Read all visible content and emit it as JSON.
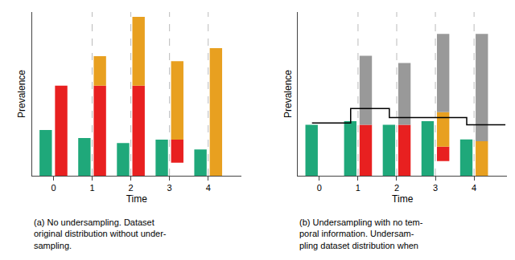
{
  "chart_data": [
    {
      "type": "bar",
      "x": [
        0,
        1,
        2,
        3,
        4
      ],
      "xlabel": "Time",
      "ylabel": "Prevalence",
      "xlim": [
        -0.55,
        4.85
      ],
      "ylim": [
        0,
        1.0
      ],
      "xticks": [
        0,
        1,
        2,
        3,
        4
      ],
      "tick_labels": "x",
      "grid": false,
      "series": [
        {
          "type": "vline",
          "x": [
            1,
            2,
            3,
            4
          ],
          "color": "#bbbbbb",
          "line_style": "dashed"
        },
        {
          "type": "bar",
          "color": "#1fa87a",
          "values": [
            0.28,
            0.23,
            0.2,
            0.22,
            0.16
          ]
        },
        {
          "type": "bar",
          "stacked": true,
          "color": "#e82020",
          "values": [
            0.55,
            0.55,
            0.55,
            0.14,
            0.0
          ],
          "bottom": [
            0.0,
            0.0,
            0.0,
            0.08,
            0.0
          ]
        },
        {
          "type": "bar",
          "stacked": true,
          "color": "#e8a020",
          "values": [
            0.0,
            0.18,
            0.42,
            0.48,
            0.78
          ]
        }
      ],
      "annotations": [
        "(a) No undersampling. Dataset",
        "original distribution without under-",
        "sampling."
      ]
    },
    {
      "type": "bar",
      "x": [
        0,
        1,
        2,
        3,
        4
      ],
      "xlabel": "Time",
      "ylabel": "Prevalence",
      "xlim": [
        -0.55,
        4.85
      ],
      "ylim": [
        0,
        0.9
      ],
      "xticks": [
        0,
        1,
        2,
        3,
        4
      ],
      "tick_labels": "x",
      "grid": false,
      "series": [
        {
          "type": "vline",
          "x": [
            1,
            2,
            3,
            4
          ],
          "color": "#bbbbbb",
          "line_style": "dashed"
        },
        {
          "type": "bar",
          "color": "#1fa87a",
          "values": [
            0.28,
            0.3,
            0.28,
            0.3,
            0.2
          ]
        },
        {
          "type": "bar",
          "stacked": true,
          "color": "#e82020",
          "values": [
            0.0,
            0.28,
            0.28,
            0.08,
            0.0
          ],
          "bottom": [
            0.0,
            0.0,
            0.0,
            0.08,
            0.0
          ]
        },
        {
          "type": "bar",
          "stacked": true,
          "color": "#e8a020",
          "values": [
            0.0,
            0.0,
            0.0,
            0.19,
            0.19
          ]
        },
        {
          "type": "bar",
          "stacked": true,
          "color": "#999999",
          "values": [
            0.0,
            0.38,
            0.34,
            0.43,
            0.59
          ]
        },
        {
          "type": "line",
          "color": "#000000",
          "x": [
            -0.19,
            0.81,
            0.81,
            1.81,
            1.81,
            2.81,
            2.81,
            3.81,
            3.81,
            4.81
          ],
          "values": [
            0.29,
            0.29,
            0.37,
            0.37,
            0.32,
            0.32,
            0.32,
            0.32,
            0.28,
            0.28
          ]
        }
      ],
      "annotations": [
        "(b) Undersampling with no tem-",
        "poral information. Undersam-",
        "pling dataset distribution when"
      ]
    }
  ]
}
